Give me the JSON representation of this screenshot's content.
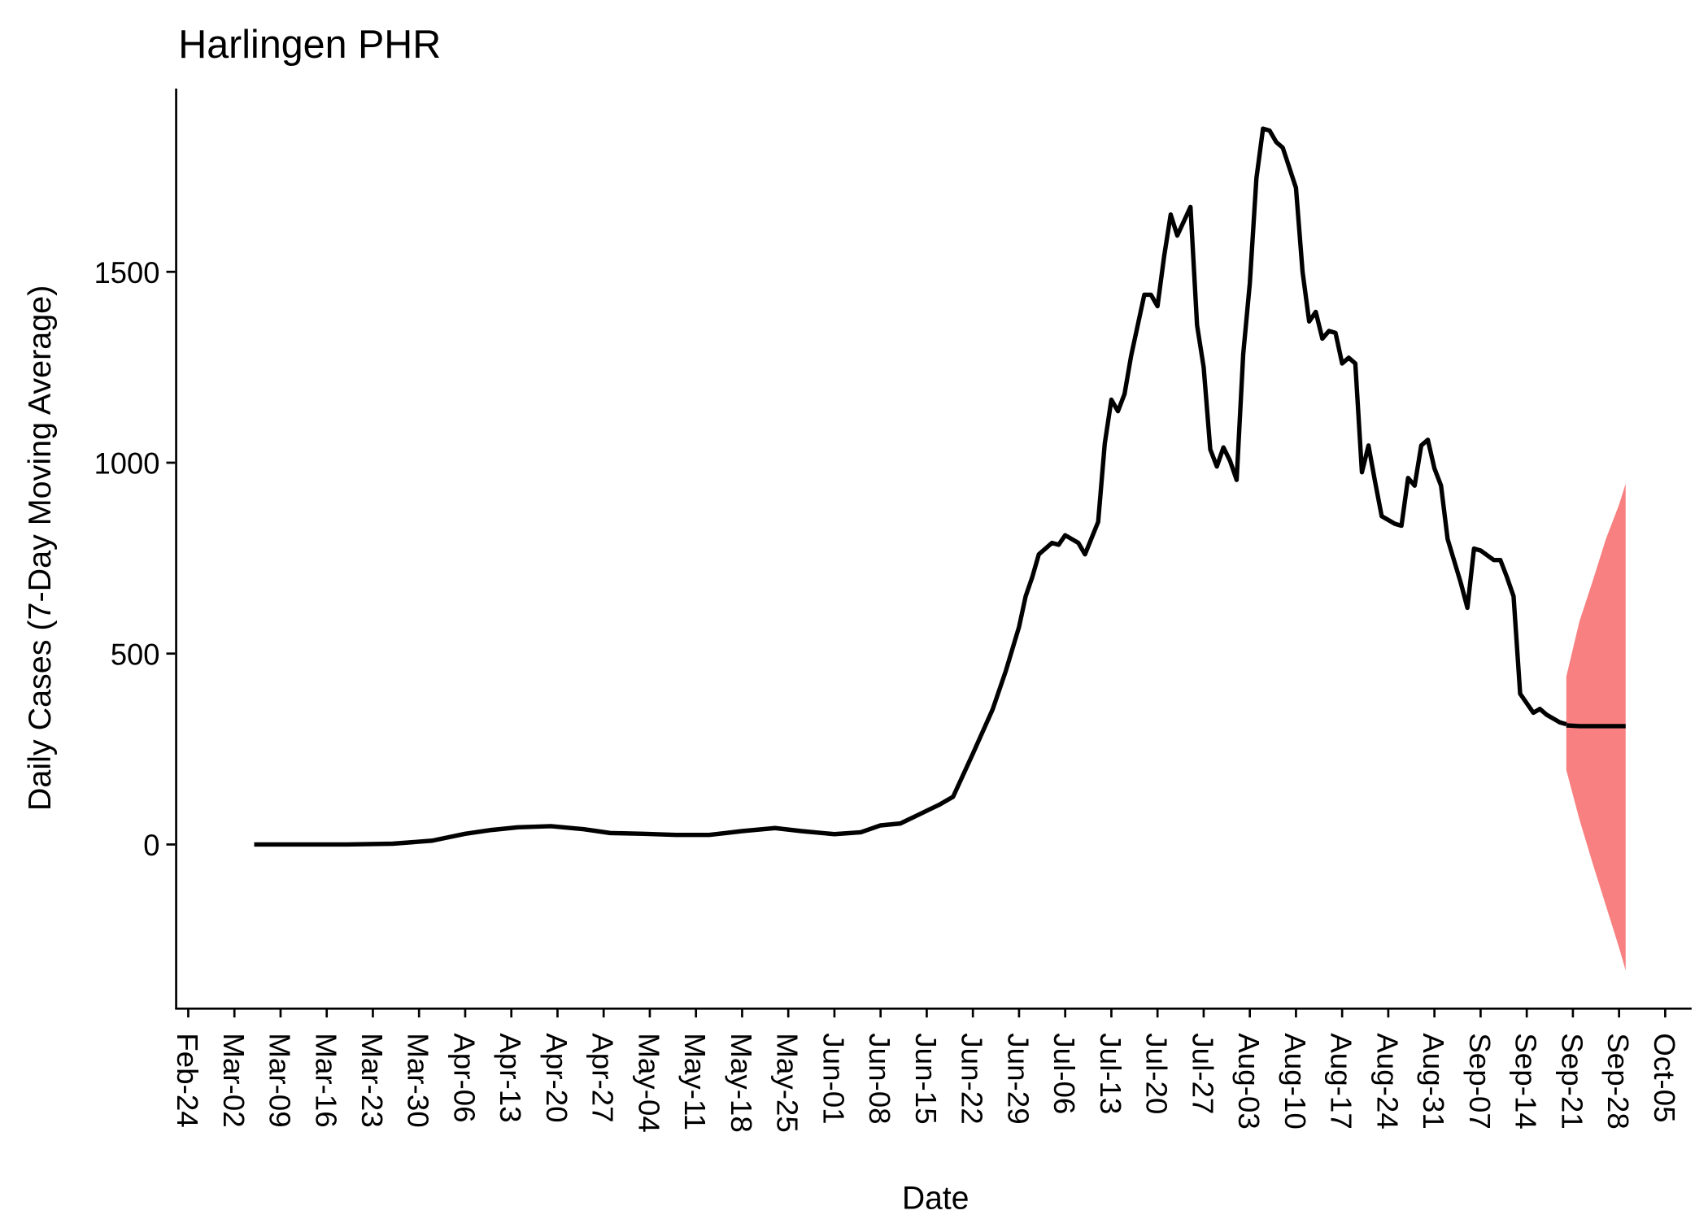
{
  "chart_data": {
    "type": "line",
    "title": "Harlingen PHR",
    "x_label": "Date",
    "y_label": "Daily Cases (7-Day Moving Average)",
    "xlim": [
      "Feb-22",
      "Oct-09"
    ],
    "xticks": [
      "Feb-24",
      "Mar-02",
      "Mar-09",
      "Mar-16",
      "Mar-23",
      "Mar-30",
      "Apr-06",
      "Apr-13",
      "Apr-20",
      "Apr-27",
      "May-04",
      "May-11",
      "May-18",
      "May-25",
      "Jun-01",
      "Jun-08",
      "Jun-15",
      "Jun-22",
      "Jun-29",
      "Jul-06",
      "Jul-13",
      "Jul-20",
      "Jul-27",
      "Aug-03",
      "Aug-10",
      "Aug-17",
      "Aug-24",
      "Aug-31",
      "Sep-07",
      "Sep-14",
      "Sep-21",
      "Sep-28",
      "Oct-05"
    ],
    "ylim": [
      -430,
      1980
    ],
    "yticks": [
      0,
      500,
      1000,
      1500
    ],
    "x": [
      "Mar-05",
      "Mar-12",
      "Mar-19",
      "Mar-26",
      "Apr-01",
      "Apr-06",
      "Apr-10",
      "Apr-14",
      "Apr-19",
      "Apr-24",
      "Apr-28",
      "May-03",
      "May-08",
      "May-13",
      "May-18",
      "May-23",
      "May-27",
      "Jun-01",
      "Jun-05",
      "Jun-08",
      "Jun-11",
      "Jun-14",
      "Jun-17",
      "Jun-19",
      "Jun-22",
      "Jun-25",
      "Jun-27",
      "Jun-29",
      "Jun-30",
      "Jul-01",
      "Jul-02",
      "Jul-04",
      "Jul-05",
      "Jul-06",
      "Jul-08",
      "Jul-09",
      "Jul-11",
      "Jul-12",
      "Jul-13",
      "Jul-14",
      "Jul-15",
      "Jul-16",
      "Jul-18",
      "Jul-19",
      "Jul-20",
      "Jul-21",
      "Jul-22",
      "Jul-23",
      "Jul-25",
      "Jul-26",
      "Jul-27",
      "Jul-28",
      "Jul-29",
      "Jul-30",
      "Jul-31",
      "Aug-01",
      "Aug-02",
      "Aug-03",
      "Aug-04",
      "Aug-05",
      "Aug-06",
      "Aug-07",
      "Aug-08",
      "Aug-10",
      "Aug-11",
      "Aug-12",
      "Aug-13",
      "Aug-14",
      "Aug-15",
      "Aug-16",
      "Aug-17",
      "Aug-18",
      "Aug-19",
      "Aug-20",
      "Aug-21",
      "Aug-22",
      "Aug-23",
      "Aug-25",
      "Aug-26",
      "Aug-27",
      "Aug-28",
      "Aug-29",
      "Aug-30",
      "Aug-31",
      "Sep-01",
      "Sep-02",
      "Sep-04",
      "Sep-05",
      "Sep-06",
      "Sep-07",
      "Sep-09",
      "Sep-10",
      "Sep-11",
      "Sep-12",
      "Sep-13",
      "Sep-14",
      "Sep-15",
      "Sep-16",
      "Sep-17",
      "Sep-19",
      "Sep-20"
    ],
    "series": [
      {
        "color": "#000000",
        "values": [
          0,
          0,
          0,
          2,
          10,
          28,
          38,
          45,
          48,
          40,
          30,
          28,
          25,
          25,
          35,
          43,
          35,
          27,
          32,
          50,
          55,
          80,
          105,
          125,
          238,
          354,
          455,
          570,
          650,
          700,
          760,
          790,
          785,
          810,
          790,
          760,
          845,
          1050,
          1165,
          1135,
          1180,
          1280,
          1440,
          1440,
          1410,
          1540,
          1650,
          1595,
          1670,
          1360,
          1250,
          1035,
          990,
          1040,
          1005,
          955,
          1285,
          1470,
          1745,
          1875,
          1870,
          1840,
          1825,
          1720,
          1500,
          1370,
          1395,
          1325,
          1345,
          1340,
          1260,
          1275,
          1260,
          975,
          1045,
          950,
          860,
          840,
          835,
          960,
          940,
          1045,
          1060,
          985,
          940,
          800,
          685,
          620,
          775,
          770,
          745,
          745,
          700,
          650,
          395,
          370,
          345,
          355,
          340,
          320,
          315
        ]
      }
    ],
    "forecast": {
      "x": [
        "Sep-20",
        "Sep-22",
        "Sep-24",
        "Sep-26",
        "Sep-28",
        "Sep-29"
      ],
      "values": [
        312,
        310,
        310,
        310,
        310,
        310
      ],
      "lower": [
        195,
        65,
        -50,
        -160,
        -270,
        -330
      ],
      "upper": [
        440,
        585,
        690,
        800,
        890,
        945
      ],
      "color": "#000000",
      "band_color": "#f88080"
    }
  }
}
